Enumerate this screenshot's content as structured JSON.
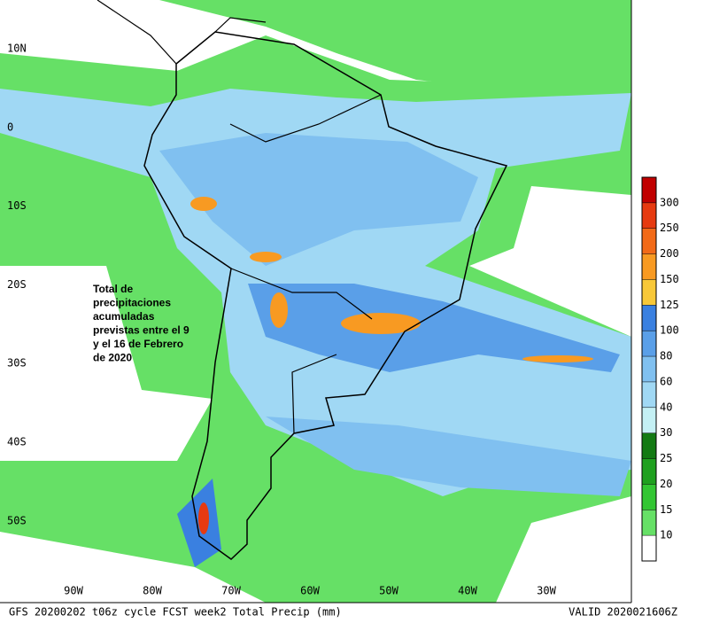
{
  "map": {
    "lat_labels": [
      "10N",
      "0",
      "10S",
      "20S",
      "30S",
      "40S",
      "50S"
    ],
    "lon_labels": [
      "90W",
      "80W",
      "70W",
      "60W",
      "50W",
      "40W",
      "30W"
    ],
    "annotation": [
      "Total de",
      "precipitaciones",
      "acumuladas",
      "previstas entre el 9",
      "y el 16 de Febrero",
      "de 2020"
    ]
  },
  "colorbar": {
    "ticks": [
      10,
      15,
      20,
      25,
      30,
      40,
      60,
      80,
      100,
      125,
      150,
      200,
      250,
      300
    ],
    "colors": [
      "#ffffff",
      "#66e066",
      "#33c633",
      "#1fa01f",
      "#137a13",
      "#c4f0f4",
      "#a0d8f4",
      "#80c0f0",
      "#5a9fe8",
      "#3a80e0",
      "#f8c838",
      "#f89a22",
      "#f26a18",
      "#e63a10",
      "#c00000"
    ]
  },
  "footer": {
    "left": "GFS 20200202 t06z cycle FCST week2 Total Precip (mm)",
    "right": "VALID 2020021606Z"
  }
}
